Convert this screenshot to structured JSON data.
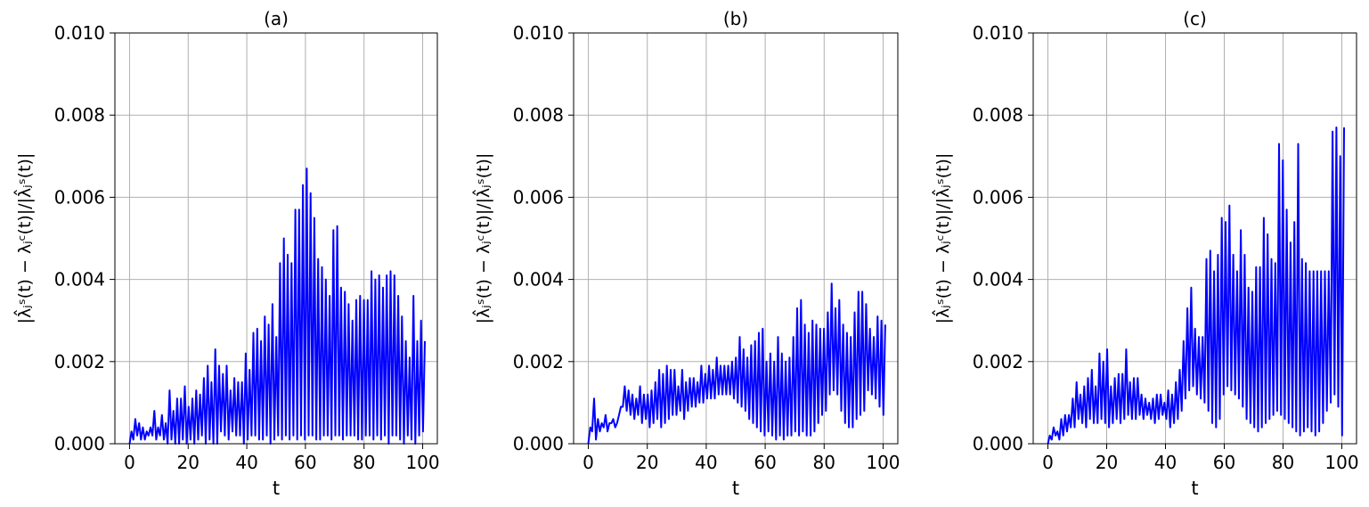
{
  "chart_data": [
    {
      "type": "line",
      "title": "(a)",
      "xlabel": "t",
      "ylabel": "|λ̂ⱼˢ(t) − λⱼᶜ(t)|/|λ̂ⱼˢ(t)|",
      "xlim": [
        -5,
        105
      ],
      "ylim": [
        0,
        0.01
      ],
      "xticks": [
        0,
        20,
        40,
        60,
        80,
        100
      ],
      "xtick_labels": [
        "0",
        "20",
        "40",
        "60",
        "80",
        "100"
      ],
      "yticks": [
        0,
        0.002,
        0.004,
        0.006,
        0.008,
        0.01
      ],
      "ytick_labels": [
        "0.000",
        "0.002",
        "0.004",
        "0.006",
        "0.008",
        "0.010"
      ],
      "grid": true,
      "series": [
        {
          "color": "#0000ff",
          "x": [
            0,
            1.3,
            2.6,
            3.9,
            5.2,
            6.5,
            7.8,
            9.1,
            10.4,
            11.7,
            13,
            14.3,
            15.6,
            16.9,
            18.2,
            19.5,
            20.8,
            22.1,
            23.4,
            24.7,
            26,
            27.3,
            28.6,
            29.9,
            31.2,
            32.5,
            33.8,
            35.1,
            36.4,
            37.7,
            39,
            40.3,
            41.6,
            42.9,
            44.2,
            45.5,
            46.8,
            48.1,
            49.4,
            50.7,
            52,
            53.3,
            54.6,
            55.9,
            57.2,
            58.5,
            59.8,
            61.1,
            62.4,
            63.7,
            65,
            66.3,
            67.6,
            68.9,
            70.2,
            71.5,
            72.8,
            74.1,
            75.4,
            76.7,
            78,
            79.3,
            80.6,
            81.9,
            83.2,
            84.5,
            85.8,
            87.1,
            88.4,
            89.7,
            91,
            92.3,
            93.6,
            94.9,
            96.2,
            97.5,
            98.8,
            100.1
          ],
          "peaks": [
            0.0003,
            0.0006,
            0.0005,
            0.0004,
            0.0003,
            0.0004,
            0.0008,
            0.0004,
            0.0007,
            0.0005,
            0.0013,
            0.0008,
            0.0011,
            0.0011,
            0.0014,
            0.0009,
            0.0011,
            0.0013,
            0.0012,
            0.0016,
            0.0019,
            0.0015,
            0.0023,
            0.0019,
            0.0017,
            0.0019,
            0.0013,
            0.0016,
            0.0015,
            0.0015,
            0.0022,
            0.0018,
            0.0027,
            0.0028,
            0.0025,
            0.0031,
            0.0029,
            0.0034,
            0.0026,
            0.0044,
            0.005,
            0.0046,
            0.0044,
            0.0057,
            0.0057,
            0.0063,
            0.0067,
            0.0061,
            0.0055,
            0.0045,
            0.0043,
            0.004,
            0.0036,
            0.0052,
            0.0053,
            0.0038,
            0.0037,
            0.0034,
            0.003,
            0.0035,
            0.0036,
            0.0035,
            0.0035,
            0.0042,
            0.004,
            0.0041,
            0.0038,
            0.0041,
            0.0042,
            0.0041,
            0.0036,
            0.0031,
            0.0025,
            0.0021,
            0.0036,
            0.0025,
            0.003,
            0.0025
          ],
          "troughs": [
            0.0,
            0.0001,
            0.0002,
            0.0001,
            0.0001,
            0.0002,
            0.0002,
            0.0001,
            0.0002,
            0.0001,
            0.0,
            0.0001,
            0.0,
            0.0,
            0.0001,
            0.0,
            0.0001,
            0.0,
            0.0001,
            0.0002,
            0.0,
            0.0001,
            0.0,
            0.0,
            0.0003,
            0.0002,
            0.0001,
            0.0003,
            0.0002,
            0.0002,
            0.0,
            0.0001,
            0.0002,
            0.0002,
            0.0001,
            0.0001,
            0.0002,
            0.0,
            0.0001,
            0.0002,
            0.0001,
            0.0002,
            0.0001,
            0.0002,
            0.0001,
            0.0002,
            0.0001,
            0.0002,
            0.0002,
            0.0001,
            0.0001,
            0.0002,
            0.0002,
            0.0001,
            0.0002,
            0.0002,
            0.0001,
            0.0002,
            0.0002,
            0.0002,
            0.0001,
            0.0001,
            0.0002,
            0.0002,
            0.0001,
            0.0002,
            0.0001,
            0.0002,
            0.0,
            0.0002,
            0.0002,
            0.0001,
            0.0,
            0.0002,
            0.0001,
            0.0,
            0.0002,
            0.0003
          ]
        }
      ]
    },
    {
      "type": "line",
      "title": "(b)",
      "xlabel": "t",
      "ylabel": "|λ̂ⱼˢ(t) − λⱼᶜ(t)|/|λ̂ⱼˢ(t)|",
      "xlim": [
        -5,
        105
      ],
      "ylim": [
        0,
        0.01
      ],
      "xticks": [
        0,
        20,
        40,
        60,
        80,
        100
      ],
      "xtick_labels": [
        "0",
        "20",
        "40",
        "60",
        "80",
        "100"
      ],
      "yticks": [
        0,
        0.002,
        0.004,
        0.006,
        0.008,
        0.01
      ],
      "ytick_labels": [
        "0.000",
        "0.002",
        "0.004",
        "0.006",
        "0.008",
        "0.010"
      ],
      "grid": true,
      "series": [
        {
          "color": "#0000ff",
          "x": [
            0,
            1.3,
            2.6,
            3.9,
            5.2,
            6.5,
            7.8,
            9.1,
            10.4,
            11.7,
            13,
            14.3,
            15.6,
            16.9,
            18.2,
            19.5,
            20.8,
            22.1,
            23.4,
            24.7,
            26,
            27.3,
            28.6,
            29.9,
            31.2,
            32.5,
            33.8,
            35.1,
            36.4,
            37.7,
            39,
            40.3,
            41.6,
            42.9,
            44.2,
            45.5,
            46.8,
            48.1,
            49.4,
            50.7,
            52,
            53.3,
            54.6,
            55.9,
            57.2,
            58.5,
            59.8,
            61.1,
            62.4,
            63.7,
            65,
            66.3,
            67.6,
            68.9,
            70.2,
            71.5,
            72.8,
            74.1,
            75.4,
            76.7,
            78,
            79.3,
            80.6,
            81.9,
            83.2,
            84.5,
            85.8,
            87.1,
            88.4,
            89.7,
            91,
            92.3,
            93.6,
            94.9,
            96.2,
            97.5,
            98.8,
            100.1
          ],
          "peaks": [
            0.0004,
            0.0011,
            0.0006,
            0.0005,
            0.0007,
            0.0005,
            0.0006,
            0.0005,
            0.0009,
            0.0014,
            0.0013,
            0.0012,
            0.0011,
            0.0014,
            0.0012,
            0.0012,
            0.0013,
            0.0015,
            0.0018,
            0.0017,
            0.0019,
            0.0018,
            0.0018,
            0.0014,
            0.0018,
            0.0015,
            0.0016,
            0.0016,
            0.0015,
            0.0019,
            0.0017,
            0.0019,
            0.0018,
            0.0021,
            0.0019,
            0.0019,
            0.0019,
            0.002,
            0.0021,
            0.0026,
            0.0023,
            0.0021,
            0.0024,
            0.0025,
            0.0027,
            0.0028,
            0.002,
            0.0022,
            0.002,
            0.0026,
            0.0022,
            0.002,
            0.0021,
            0.0026,
            0.0033,
            0.0035,
            0.0029,
            0.0027,
            0.003,
            0.0029,
            0.0028,
            0.0028,
            0.0032,
            0.0039,
            0.0033,
            0.0035,
            0.0029,
            0.0027,
            0.0026,
            0.0032,
            0.0037,
            0.0037,
            0.0034,
            0.0028,
            0.0026,
            0.0031,
            0.003,
            0.0029
          ],
          "troughs": [
            0.0,
            0.0003,
            0.0001,
            0.0003,
            0.0004,
            0.0003,
            0.0005,
            0.0004,
            0.0007,
            0.0009,
            0.0008,
            0.0007,
            0.0006,
            0.0007,
            0.0005,
            0.0006,
            0.0004,
            0.0005,
            0.0006,
            0.0004,
            0.0005,
            0.0006,
            0.0007,
            0.0007,
            0.0008,
            0.0006,
            0.0008,
            0.0009,
            0.0009,
            0.001,
            0.001,
            0.0011,
            0.0011,
            0.0011,
            0.0012,
            0.0012,
            0.0012,
            0.0012,
            0.0011,
            0.001,
            0.0009,
            0.0008,
            0.0006,
            0.0005,
            0.0004,
            0.0003,
            0.0002,
            0.0003,
            0.0002,
            0.0001,
            0.0002,
            0.0001,
            0.0002,
            0.0002,
            0.0003,
            0.0002,
            0.0003,
            0.0002,
            0.0002,
            0.0003,
            0.0005,
            0.0007,
            0.0008,
            0.0012,
            0.0013,
            0.0012,
            0.0008,
            0.0005,
            0.0004,
            0.0004,
            0.0006,
            0.0007,
            0.0008,
            0.0013,
            0.0012,
            0.0011,
            0.0009,
            0.0007
          ]
        }
      ]
    },
    {
      "type": "line",
      "title": "(c)",
      "xlabel": "t",
      "ylabel": "|λ̂ⱼˢ(t) − λⱼᶜ(t)|/|λ̂ⱼˢ(t)|",
      "xlim": [
        -5,
        105
      ],
      "ylim": [
        0,
        0.01
      ],
      "xticks": [
        0,
        20,
        40,
        60,
        80,
        100
      ],
      "xtick_labels": [
        "0",
        "20",
        "40",
        "60",
        "80",
        "100"
      ],
      "yticks": [
        0,
        0.002,
        0.004,
        0.006,
        0.008,
        0.01
      ],
      "ytick_labels": [
        "0.000",
        "0.002",
        "0.004",
        "0.006",
        "0.008",
        "0.010"
      ],
      "grid": true,
      "series": [
        {
          "color": "#0000ff",
          "x": [
            0,
            1.3,
            2.6,
            3.9,
            5.2,
            6.5,
            7.8,
            9.1,
            10.4,
            11.7,
            13,
            14.3,
            15.6,
            16.9,
            18.2,
            19.5,
            20.8,
            22.1,
            23.4,
            24.7,
            26,
            27.3,
            28.6,
            29.9,
            31.2,
            32.5,
            33.8,
            35.1,
            36.4,
            37.7,
            39,
            40.3,
            41.6,
            42.9,
            44.2,
            45.5,
            46.8,
            48.1,
            49.4,
            50.7,
            52,
            53.3,
            54.6,
            55.9,
            57.2,
            58.5,
            59.8,
            61.1,
            62.4,
            63.7,
            65,
            66.3,
            67.6,
            68.9,
            70.2,
            71.5,
            72.8,
            74.1,
            75.4,
            76.7,
            78,
            79.3,
            80.6,
            81.9,
            83.2,
            84.5,
            85.8,
            87.1,
            88.4,
            89.7,
            91,
            92.3,
            93.6,
            94.9,
            96.2,
            97.5,
            98.8,
            100.1
          ],
          "peaks": [
            0.0002,
            0.0004,
            0.0003,
            0.0006,
            0.0007,
            0.0007,
            0.0011,
            0.0015,
            0.0012,
            0.0014,
            0.0016,
            0.0018,
            0.0014,
            0.0022,
            0.002,
            0.0023,
            0.0014,
            0.0016,
            0.0017,
            0.0017,
            0.0023,
            0.0015,
            0.0016,
            0.0016,
            0.0012,
            0.0011,
            0.001,
            0.0011,
            0.0012,
            0.0012,
            0.001,
            0.0013,
            0.0012,
            0.0015,
            0.0018,
            0.0025,
            0.0033,
            0.0038,
            0.0028,
            0.0026,
            0.0026,
            0.0045,
            0.0047,
            0.0042,
            0.0046,
            0.0055,
            0.0054,
            0.0058,
            0.0046,
            0.0042,
            0.0052,
            0.0046,
            0.0038,
            0.0037,
            0.0043,
            0.0043,
            0.0055,
            0.0051,
            0.0045,
            0.0044,
            0.0073,
            0.0069,
            0.0057,
            0.0049,
            0.0054,
            0.0073,
            0.0045,
            0.0044,
            0.0042,
            0.0042,
            0.0042,
            0.0042,
            0.0042,
            0.0042,
            0.0076,
            0.0077,
            0.007,
            0.0077
          ],
          "troughs": [
            0.0,
            0.0001,
            0.0002,
            0.0001,
            0.0002,
            0.0003,
            0.0004,
            0.0004,
            0.0006,
            0.0005,
            0.0004,
            0.0006,
            0.0005,
            0.0005,
            0.0006,
            0.0005,
            0.0004,
            0.0005,
            0.0006,
            0.0005,
            0.0006,
            0.0007,
            0.0006,
            0.0006,
            0.0007,
            0.0006,
            0.0007,
            0.0006,
            0.0005,
            0.0006,
            0.0007,
            0.0006,
            0.0004,
            0.0005,
            0.0006,
            0.0008,
            0.0011,
            0.0013,
            0.0014,
            0.0012,
            0.0011,
            0.001,
            0.0008,
            0.0005,
            0.0004,
            0.0006,
            0.0012,
            0.0014,
            0.0013,
            0.0012,
            0.0011,
            0.0009,
            0.0006,
            0.0005,
            0.0004,
            0.0003,
            0.0004,
            0.0005,
            0.0006,
            0.0007,
            0.0008,
            0.0007,
            0.0006,
            0.0005,
            0.0004,
            0.0003,
            0.0002,
            0.0003,
            0.0004,
            0.0003,
            0.0002,
            0.0003,
            0.0005,
            0.0008,
            0.001,
            0.0012,
            0.0009,
            0.0002
          ]
        }
      ]
    }
  ]
}
